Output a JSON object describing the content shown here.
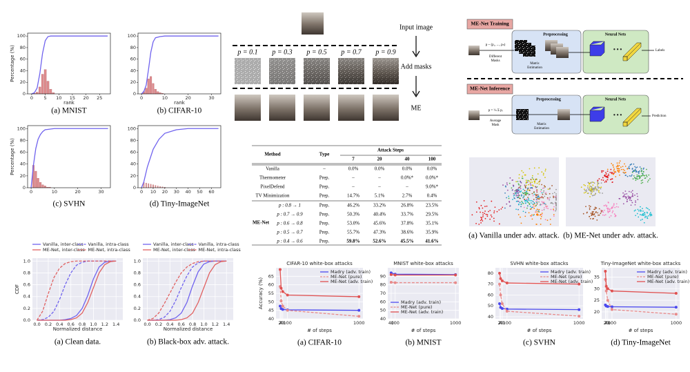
{
  "chart_data": [
    {
      "type": "combo",
      "caption": "(a) MNIST",
      "xlabel": "rank",
      "ylabel": "Percentage (%)",
      "xlim": [
        -1.5,
        29
      ],
      "ylim": [
        0,
        105
      ],
      "xticks": [
        0,
        5,
        10,
        15,
        20,
        25
      ],
      "yticks": [
        0,
        20,
        40,
        60,
        80,
        100
      ],
      "color": "#6f62ee",
      "x": [
        0,
        1,
        2,
        3,
        4,
        5,
        6,
        7,
        10,
        28
      ],
      "values": [
        0,
        2,
        10,
        35,
        70,
        92,
        99,
        100,
        100,
        100
      ],
      "bars": {
        "color": "#d9767a",
        "x": [
          1,
          2,
          3,
          4,
          5,
          6,
          7,
          8
        ],
        "values": [
          1,
          3,
          12,
          34,
          42,
          22,
          8,
          2
        ]
      }
    },
    {
      "type": "combo",
      "caption": "(b) CIFAR-10",
      "xlabel": "rank",
      "xlim": [
        -1.5,
        34
      ],
      "ylim": [
        0,
        105
      ],
      "xticks": [
        0,
        10,
        20,
        30
      ],
      "yticks": [
        0,
        20,
        40,
        60,
        80,
        100
      ],
      "color": "#6f62ee",
      "x": [
        0,
        1,
        2,
        3,
        4,
        5,
        6,
        8,
        10,
        33
      ],
      "values": [
        0,
        4,
        15,
        42,
        72,
        90,
        97,
        99,
        100,
        100
      ],
      "bars": {
        "color": "#d9767a",
        "x": [
          1,
          2,
          3,
          4,
          5,
          6,
          7,
          8,
          9
        ],
        "values": [
          4,
          10,
          26,
          30,
          18,
          8,
          4,
          2,
          1
        ]
      }
    },
    {
      "type": "combo",
      "caption": "(c) SVHN",
      "ylabel": "Percentage (%)",
      "xlim": [
        -1.5,
        34
      ],
      "ylim": [
        0,
        105
      ],
      "xticks": [
        0,
        10,
        20,
        30
      ],
      "yticks": [
        0,
        20,
        40,
        60,
        80,
        100
      ],
      "color": "#6f62ee",
      "x": [
        0,
        1,
        2,
        3,
        4,
        5,
        6,
        8,
        10,
        33
      ],
      "values": [
        0,
        38,
        66,
        82,
        90,
        95,
        98,
        99,
        100,
        100
      ],
      "bars": {
        "color": "#d9767a",
        "x": [
          1,
          2,
          3,
          4,
          5,
          6,
          7,
          8
        ],
        "values": [
          38,
          28,
          16,
          9,
          5,
          3,
          1,
          1
        ]
      }
    },
    {
      "type": "combo",
      "caption": "(d) Tiny-ImageNet",
      "xlim": [
        -3,
        68
      ],
      "ylim": [
        0,
        105
      ],
      "xticks": [
        0,
        10,
        20,
        30,
        40,
        50,
        60
      ],
      "yticks": [
        0,
        20,
        40,
        60,
        80,
        100
      ],
      "color": "#6f62ee",
      "x": [
        0,
        2,
        5,
        10,
        15,
        20,
        30,
        40,
        66
      ],
      "values": [
        0,
        10,
        35,
        65,
        82,
        92,
        98,
        100,
        100
      ],
      "bars": {
        "color": "#d9767a",
        "x": [
          2,
          4,
          6,
          8,
          10,
          12,
          14,
          16,
          18,
          20
        ],
        "values": [
          9,
          8,
          7,
          6,
          5,
          4,
          3,
          2,
          1.5,
          1
        ]
      }
    },
    {
      "type": "line",
      "caption": "(a) Clean data.",
      "xlabel": "Normalized distance",
      "ylabel": "CDF",
      "grid": true,
      "legend": "top",
      "xlim": [
        -0.08,
        1.52
      ],
      "ylim": [
        0,
        1.05
      ],
      "xticks": [
        {
          "value": 0,
          "label": "0.0"
        },
        {
          "value": 0.2,
          "label": "0.2"
        },
        {
          "value": 0.4,
          "label": "0.4"
        },
        {
          "value": 0.6,
          "label": "0.6"
        },
        {
          "value": 0.8,
          "label": "0.8"
        },
        {
          "value": 1,
          "label": "1.0"
        },
        {
          "value": 1.2,
          "label": "1.2"
        },
        {
          "value": 1.4,
          "label": "1.4"
        }
      ],
      "yticks": [
        {
          "value": 0,
          "label": "0.0"
        },
        {
          "value": 0.2,
          "label": "0.2"
        },
        {
          "value": 0.4,
          "label": "0.4"
        },
        {
          "value": 0.6,
          "label": "0.6"
        },
        {
          "value": 0.8,
          "label": "0.8"
        },
        {
          "value": 1,
          "label": "1.0"
        }
      ],
      "x": [
        0,
        0.1,
        0.2,
        0.3,
        0.4,
        0.5,
        0.6,
        0.7,
        0.8,
        0.9,
        1,
        1.1,
        1.2,
        1.3,
        1.4
      ],
      "series": [
        {
          "name": "Vanilla,  inter-class",
          "color": "#6f62ee",
          "dashed": false,
          "values": [
            0,
            0,
            0,
            0,
            0,
            0.01,
            0.03,
            0.08,
            0.2,
            0.42,
            0.7,
            0.9,
            0.98,
            1,
            1
          ]
        },
        {
          "name": "Vanilla,  intra-class",
          "color": "#6f62ee",
          "dashed": true,
          "values": [
            0,
            0.01,
            0.05,
            0.15,
            0.35,
            0.6,
            0.8,
            0.93,
            0.98,
            1,
            1,
            1,
            1,
            1,
            1
          ]
        },
        {
          "name": "ME-Net, inter-class",
          "color": "#e06060",
          "dashed": false,
          "values": [
            0,
            0,
            0,
            0,
            0,
            0,
            0.01,
            0.04,
            0.12,
            0.3,
            0.55,
            0.8,
            0.94,
            0.99,
            1
          ]
        },
        {
          "name": "ME-Net, intra-class",
          "color": "#e06060",
          "dashed": true,
          "values": [
            0,
            0.15,
            0.45,
            0.72,
            0.88,
            0.96,
            0.99,
            1,
            1,
            1,
            1,
            1,
            1,
            1,
            1
          ]
        }
      ]
    },
    {
      "type": "line",
      "caption": "(b) Black-box adv. attack.",
      "xlabel": "Normalized distance",
      "grid": true,
      "legend": "top",
      "xlim": [
        -0.08,
        1.52
      ],
      "ylim": [
        0,
        1.05
      ],
      "xticks": [
        {
          "value": 0,
          "label": "0.0"
        },
        {
          "value": 0.2,
          "label": "0.2"
        },
        {
          "value": 0.4,
          "label": "0.4"
        },
        {
          "value": 0.6,
          "label": "0.6"
        },
        {
          "value": 0.8,
          "label": "0.8"
        },
        {
          "value": 1,
          "label": "1.0"
        },
        {
          "value": 1.2,
          "label": "1.2"
        },
        {
          "value": 1.4,
          "label": "1.4"
        }
      ],
      "yticks": [
        {
          "value": 0,
          "label": "0.0"
        },
        {
          "value": 0.2,
          "label": "0.2"
        },
        {
          "value": 0.4,
          "label": "0.4"
        },
        {
          "value": 0.6,
          "label": "0.6"
        },
        {
          "value": 0.8,
          "label": "0.8"
        },
        {
          "value": 1,
          "label": "1.0"
        }
      ],
      "x": [
        0,
        0.1,
        0.2,
        0.3,
        0.4,
        0.5,
        0.6,
        0.7,
        0.8,
        0.9,
        1,
        1.1,
        1.2,
        1.3,
        1.4
      ],
      "series": [
        {
          "name": "Vanilla,  inter-class",
          "color": "#6f62ee",
          "dashed": false,
          "values": [
            0,
            0,
            0,
            0,
            0.01,
            0.04,
            0.12,
            0.3,
            0.58,
            0.82,
            0.95,
            0.99,
            1,
            1,
            1
          ]
        },
        {
          "name": "Vanilla,  intra-class",
          "color": "#6f62ee",
          "dashed": true,
          "values": [
            0,
            0,
            0.01,
            0.05,
            0.15,
            0.33,
            0.55,
            0.75,
            0.9,
            0.97,
            1,
            1,
            1,
            1,
            1
          ]
        },
        {
          "name": "ME-Net, inter-class",
          "color": "#e06060",
          "dashed": false,
          "values": [
            0,
            0,
            0,
            0,
            0,
            0,
            0.01,
            0.04,
            0.12,
            0.3,
            0.55,
            0.8,
            0.94,
            0.99,
            1
          ]
        },
        {
          "name": "ME-Net, intra-class",
          "color": "#e06060",
          "dashed": true,
          "values": [
            0,
            0.03,
            0.12,
            0.28,
            0.46,
            0.64,
            0.8,
            0.9,
            0.96,
            0.99,
            1,
            1,
            1,
            1,
            1
          ]
        }
      ]
    },
    {
      "type": "line",
      "title": "CIFAR-10 white-box attacks",
      "caption": "(a) CIFAR-10",
      "xlabel": "# of steps",
      "ylabel": "Accuracy (%)",
      "grid": true,
      "legend": "upper right",
      "markers": true,
      "x": [
        7,
        20,
        40,
        100,
        1000
      ],
      "xlim": [
        -45,
        1050
      ],
      "ylim": [
        40,
        70
      ],
      "xticks": [
        7,
        20,
        40,
        100,
        1000
      ],
      "yticks": [
        40,
        45,
        50,
        55,
        60,
        65
      ],
      "series": [
        {
          "name": "Madry (adv. train)",
          "color": "#4a48ee",
          "dashed": false,
          "values": [
            47.5,
            46,
            45.5,
            45.3,
            45
          ]
        },
        {
          "name": "ME-Net (pure)",
          "color": "#e88a8a",
          "dashed": true,
          "values": [
            59,
            50.5,
            47.5,
            45,
            41.5
          ]
        },
        {
          "name": "ME-Net (adv. train)",
          "color": "#e05050",
          "dashed": false,
          "values": [
            69,
            58,
            56,
            54,
            53
          ]
        }
      ]
    },
    {
      "type": "line",
      "title": "MNIST white-box attacks",
      "caption": "(b) MNIST",
      "xlabel": "# of steps",
      "grid": true,
      "legend": "lower left",
      "markers": true,
      "x": [
        40,
        100,
        1000
      ],
      "xlim": [
        -10,
        1050
      ],
      "ylim": [
        40,
        100
      ],
      "xticks": [
        40,
        100,
        1000
      ],
      "yticks": [
        40,
        50,
        60,
        70,
        80,
        90
      ],
      "series": [
        {
          "name": "Madry  (adv. train)",
          "color": "#4a48ee",
          "dashed": false,
          "values": [
            94,
            92.5,
            92
          ]
        },
        {
          "name": "ME-Net (pure)",
          "color": "#e88a8a",
          "dashed": true,
          "values": [
            83,
            82.5,
            82.5
          ]
        },
        {
          "name": "ME-Net (adv. train)",
          "color": "#e05050",
          "dashed": false,
          "values": [
            92,
            91.5,
            91.5
          ]
        }
      ]
    },
    {
      "type": "line",
      "title": "SVHN white-box attacks",
      "caption": "(c) SVHN",
      "xlabel": "# of steps",
      "grid": true,
      "legend": "upper right",
      "markers": true,
      "x": [
        7,
        20,
        40,
        100,
        1000
      ],
      "xlim": [
        -45,
        1050
      ],
      "ylim": [
        38,
        85
      ],
      "xticks": [
        7,
        20,
        40,
        100,
        1000
      ],
      "yticks": [
        40,
        50,
        60,
        70,
        80
      ],
      "series": [
        {
          "name": "Madry (adv. train)",
          "color": "#4a48ee",
          "dashed": false,
          "values": [
            52,
            48.5,
            47.5,
            47,
            46.5
          ]
        },
        {
          "name": "ME-Net (pure)",
          "color": "#e88a8a",
          "dashed": true,
          "values": [
            70,
            60,
            52,
            45,
            40.5
          ]
        },
        {
          "name": "ME-Net (adv. train)",
          "color": "#e05050",
          "dashed": false,
          "values": [
            80,
            75,
            73,
            71,
            70
          ]
        }
      ]
    },
    {
      "type": "line",
      "title": "Tiny-ImageNet white-box attacks",
      "caption": "(d) Tiny-ImageNet",
      "xlabel": "# of steps",
      "grid": true,
      "legend": "upper right",
      "markers": true,
      "x": [
        7,
        20,
        40,
        100,
        1000
      ],
      "xlim": [
        -45,
        1050
      ],
      "ylim": [
        17,
        39
      ],
      "xticks": [
        7,
        20,
        40,
        100,
        1000
      ],
      "yticks": [
        20,
        25,
        30,
        35
      ],
      "series": [
        {
          "name": "Madry (adv. train)",
          "color": "#4a48ee",
          "dashed": false,
          "values": [
            23,
            22.5,
            22.3,
            22.2,
            22
          ]
        },
        {
          "name": "ME-Net (pure)",
          "color": "#e88a8a",
          "dashed": true,
          "values": [
            34,
            29,
            25,
            21,
            19
          ]
        },
        {
          "name": "ME-Net (adv. train)",
          "color": "#e05050",
          "dashed": false,
          "values": [
            37.5,
            31,
            30,
            29,
            28
          ]
        }
      ]
    }
  ],
  "masks": {
    "p_labels": [
      "p = 0.1",
      "p = 0.3",
      "p = 0.5",
      "p = 0.7",
      "p = 0.9"
    ],
    "steps": [
      "Input image",
      "Add masks",
      "ME"
    ]
  },
  "diagram": {
    "training": {
      "title": "ME-Net Training",
      "formula": "p ~ (p₁, ..., pₙ)",
      "masks": [
        "Different",
        "Masks"
      ],
      "estimation": [
        "Matrix",
        "Estimation"
      ],
      "preprocessing": "Preprocessing",
      "neural_nets": "Neural Nets",
      "output": "Labels"
    },
    "inference": {
      "title": "ME-Net Inference",
      "formula": "p = ¹⁄ₙ Σ pᵢ",
      "masks": [
        "Average",
        "Mask"
      ],
      "estimation": [
        "Matrix",
        "Estimation"
      ],
      "preprocessing": "Preprocessing",
      "neural_nets": "Neural Nets",
      "output": "Prediction"
    }
  },
  "table": {
    "method": "Method",
    "type": "Type",
    "attack_steps": "Attack Steps",
    "steps": [
      "7",
      "20",
      "40",
      "100"
    ],
    "rows": [
      [
        "Vanilla",
        "–",
        "0.0%",
        "0.0%",
        "0.0%",
        "0.0%"
      ],
      [
        "Thermometer",
        "Prep.",
        "–",
        "–",
        "0.0%*",
        "0.0%*"
      ],
      [
        "PixelDefend",
        "Prep.",
        "–",
        "–",
        "–",
        "9.0%*"
      ],
      [
        "TV Minimization",
        "Prep.",
        "14.7%",
        "5.1%",
        "2.7%",
        "0.4%"
      ]
    ],
    "group": "ME-Net",
    "group_rows": [
      [
        "p : 0.8 → 1",
        "Prep.",
        "46.2%",
        "33.2%",
        "26.8%",
        "23.5%"
      ],
      [
        "p : 0.7 → 0.9",
        "Prep.",
        "50.3%",
        "40.4%",
        "33.7%",
        "29.5%"
      ],
      [
        "p : 0.6 → 0.8",
        "Prep.",
        "53.0%",
        "45.6%",
        "37.8%",
        "35.1%"
      ],
      [
        "p : 0.5 → 0.7",
        "Prep.",
        "55.7%",
        "47.3%",
        "38.6%",
        "35.9%"
      ],
      [
        "p : 0.4 → 0.6",
        "Prep.",
        "59.8%",
        "52.6%",
        "45.5%",
        "41.6%"
      ]
    ]
  },
  "tsne": {
    "captions": [
      "(a) Vanilla under adv. attack.",
      "(b) ME-Net under adv. attack."
    ]
  }
}
